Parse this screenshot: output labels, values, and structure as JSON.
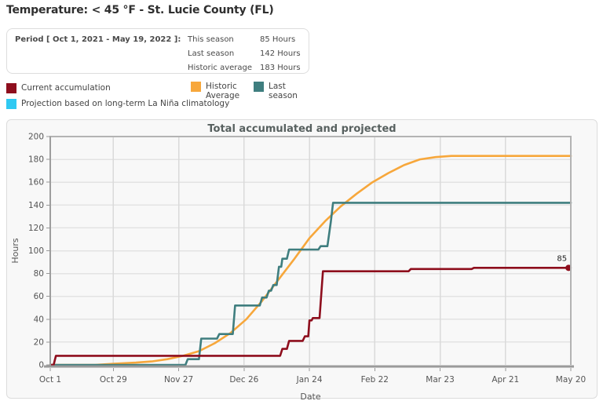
{
  "page_title": "Temperature: < 45 °F - St. Lucie County (FL)",
  "summary_box": {
    "period_label": "Period [ Oct 1, 2021 - May 19, 2022 ]:",
    "rows": [
      {
        "label": "This season",
        "value": "85 Hours"
      },
      {
        "label": "Last season",
        "value": "142 Hours"
      },
      {
        "label": "Historic average",
        "value": "183 Hours"
      }
    ]
  },
  "legend": {
    "items": [
      {
        "id": "current-accumulation",
        "label": "Current accumulation",
        "color": "#8e0e1d"
      },
      {
        "id": "projection",
        "label": "Projection based on long-term La Niña climatology",
        "color": "#30c9f2"
      },
      {
        "id": "historic-average",
        "label": "Historic Average",
        "color": "#f7a73b"
      },
      {
        "id": "last-season",
        "label": "Last season",
        "color": "#3f7e7f"
      }
    ]
  },
  "chart_data": {
    "type": "line",
    "title": "Total accumulated and projected",
    "xlabel": "Date",
    "ylabel": "Hours",
    "ylim": [
      0,
      200
    ],
    "y_ticks": [
      0,
      20,
      40,
      60,
      80,
      100,
      120,
      140,
      160,
      180,
      200
    ],
    "x_axis_days_range": [
      0,
      231
    ],
    "x_ticks": [
      {
        "day": 0,
        "label": "Oct 1"
      },
      {
        "day": 28,
        "label": "Oct 29"
      },
      {
        "day": 57,
        "label": "Nov 27"
      },
      {
        "day": 86,
        "label": "Dec 26"
      },
      {
        "day": 115,
        "label": "Jan 24"
      },
      {
        "day": 144,
        "label": "Feb 22"
      },
      {
        "day": 173,
        "label": "Mar 23"
      },
      {
        "day": 202,
        "label": "Apr 21"
      },
      {
        "day": 231,
        "label": "May 20"
      }
    ],
    "grid": true,
    "legend_position": "top-outside",
    "end_annotation": {
      "text": "85",
      "day": 230,
      "value": 85
    },
    "series": [
      {
        "name": "Historic Average",
        "color": "#f7a73b",
        "final_value": 183,
        "points": [
          [
            0,
            0
          ],
          [
            20,
            0
          ],
          [
            28,
            1
          ],
          [
            38,
            2
          ],
          [
            45,
            3
          ],
          [
            52,
            5
          ],
          [
            59,
            8
          ],
          [
            66,
            12
          ],
          [
            73,
            19
          ],
          [
            80,
            28
          ],
          [
            87,
            40
          ],
          [
            94,
            56
          ],
          [
            101,
            74
          ],
          [
            108,
            92
          ],
          [
            115,
            111
          ],
          [
            122,
            126
          ],
          [
            129,
            139
          ],
          [
            136,
            150
          ],
          [
            143,
            160
          ],
          [
            150,
            168
          ],
          [
            157,
            175
          ],
          [
            164,
            180
          ],
          [
            171,
            182
          ],
          [
            178,
            183
          ],
          [
            231,
            183
          ]
        ]
      },
      {
        "name": "Last season",
        "color": "#3f7e7f",
        "final_value": 142,
        "points": [
          [
            0,
            0
          ],
          [
            60,
            0
          ],
          [
            61,
            5
          ],
          [
            66,
            5
          ],
          [
            67,
            23
          ],
          [
            74,
            23
          ],
          [
            75,
            27
          ],
          [
            81,
            27
          ],
          [
            82,
            52
          ],
          [
            93,
            52
          ],
          [
            94,
            59
          ],
          [
            96,
            59
          ],
          [
            97,
            65
          ],
          [
            98,
            65
          ],
          [
            99,
            70
          ],
          [
            100.5,
            70
          ],
          [
            101.5,
            86
          ],
          [
            102.5,
            86
          ],
          [
            103,
            93
          ],
          [
            105,
            93
          ],
          [
            106,
            101
          ],
          [
            119,
            101
          ],
          [
            120,
            104
          ],
          [
            123,
            104
          ],
          [
            124.5,
            125
          ],
          [
            125.5,
            142
          ],
          [
            231,
            142
          ]
        ]
      },
      {
        "name": "Current accumulation",
        "color": "#8e0e1d",
        "final_value": 85,
        "end_marker": true,
        "points": [
          [
            0,
            0
          ],
          [
            1.5,
            0
          ],
          [
            2.5,
            8
          ],
          [
            102,
            8
          ],
          [
            103,
            14
          ],
          [
            105,
            14
          ],
          [
            106,
            21
          ],
          [
            112,
            21
          ],
          [
            113,
            25
          ],
          [
            114.5,
            25
          ],
          [
            115,
            39
          ],
          [
            116,
            39
          ],
          [
            116.5,
            41
          ],
          [
            119.5,
            41
          ],
          [
            121,
            82
          ],
          [
            159,
            82
          ],
          [
            160,
            84
          ],
          [
            187,
            84
          ],
          [
            188,
            85
          ],
          [
            230,
            85
          ]
        ]
      }
    ]
  }
}
